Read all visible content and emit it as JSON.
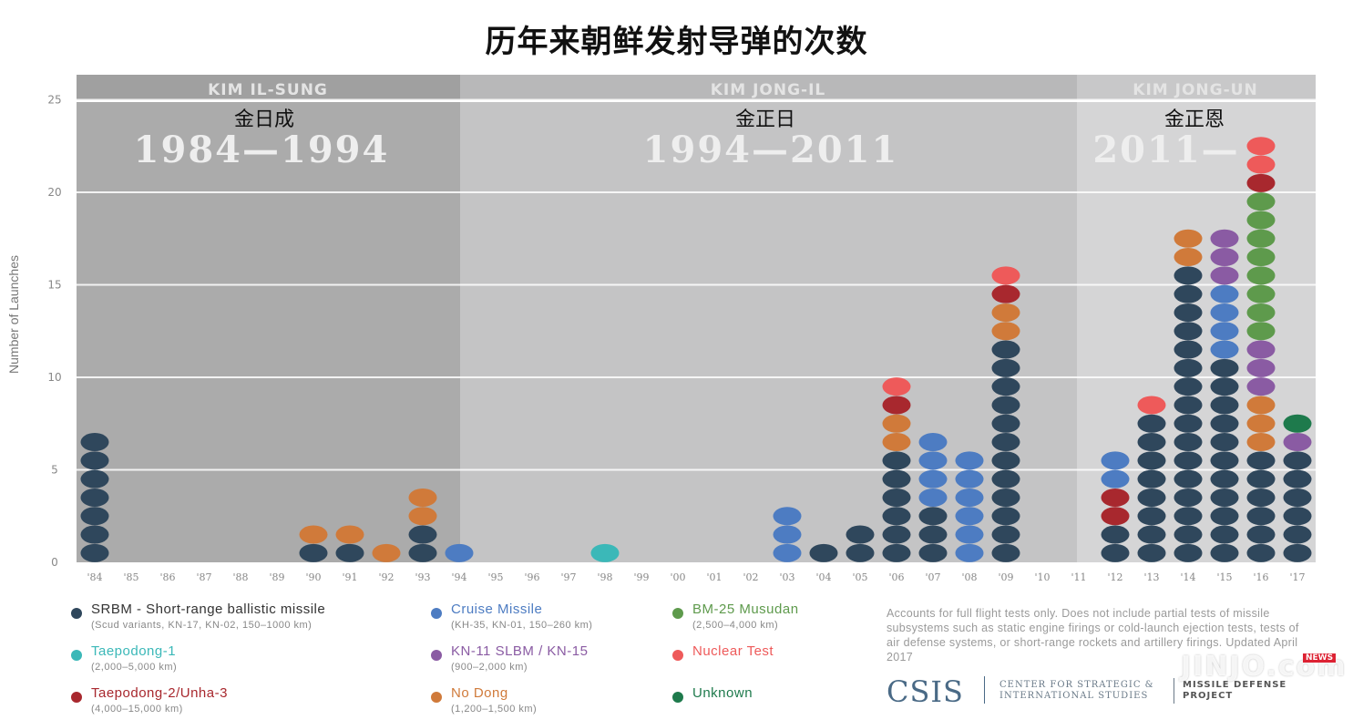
{
  "title": "历年来朝鲜发射导弹的次数",
  "eras": [
    {
      "name": "KIM IL-SUNG",
      "cn": "金日成",
      "years": "1984—1994",
      "color": "#ababab"
    },
    {
      "name": "KIM JONG-IL",
      "cn": "金正日",
      "years": "1994—2011",
      "color": "#c4c4c5"
    },
    {
      "name": "KIM JONG-UN",
      "cn": "金正恩",
      "years": "2011—",
      "color": "#d5d5d6"
    }
  ],
  "legend": [
    {
      "key": "srbm",
      "name": "SRBM - Short-range ballistic missile",
      "sub": "(Scud variants, KN-17, KN-02, 150–1000 km)",
      "color": "#2f475c"
    },
    {
      "key": "taepodong1",
      "name": "Taepodong-1",
      "sub": "(2,000–5,000 km)",
      "color": "#3bb8b8"
    },
    {
      "key": "taepodong2",
      "name": "Taepodong-2/Unha-3",
      "sub": "(4,000–15,000 km)",
      "color": "#a8282e"
    },
    {
      "key": "cruise",
      "name": "Cruise Missile",
      "sub": "(KH-35, KN-01, 150–260 km)",
      "color": "#4d7cc2"
    },
    {
      "key": "kn11",
      "name": "KN-11 SLBM / KN-15",
      "sub": "(900–2,000 km)",
      "color": "#8a5ba3"
    },
    {
      "key": "nodong",
      "name": "No Dong",
      "sub": "(1,200–1,500 km)",
      "color": "#d07a3a"
    },
    {
      "key": "musudan",
      "name": "BM-25 Musudan",
      "sub": "(2,500–4,000 km)",
      "color": "#5e9a4c"
    },
    {
      "key": "nuclear",
      "name": "Nuclear Test",
      "sub": "",
      "color": "#ee5a5a"
    },
    {
      "key": "unknown",
      "name": "Unknown",
      "sub": "",
      "color": "#1e7a4c"
    }
  ],
  "note": "Accounts for full flight tests only. Does not include partial tests of missile subsystems such as static engine firings or cold-launch ejection tests, tests of air defense systems, or short-range rockets and artillery firings. Updated April 2017",
  "branding": {
    "logo": "CSIS",
    "center": "CENTER FOR STRATEGIC &\nINTERNATIONAL STUDIES",
    "project": "MISSILE DEFENSE\nPROJECT",
    "watermark": "JINJO.com",
    "watermark_badge": "NEWS"
  },
  "chart_data": {
    "type": "bar",
    "title": "历年来朝鲜发射导弹的次数",
    "ylabel": "Number of Launches",
    "ylim": [
      0,
      25
    ],
    "yticks": [
      0,
      5,
      10,
      15,
      20,
      25
    ],
    "categories": [
      "'84",
      "'85",
      "'86",
      "'87",
      "'88",
      "'89",
      "'90",
      "'91",
      "'92",
      "'93",
      "'94",
      "'95",
      "'96",
      "'97",
      "'98",
      "'99",
      "'00",
      "'01",
      "'02",
      "'03",
      "'04",
      "'05",
      "'06",
      "'07",
      "'08",
      "'09",
      "'10",
      "'11",
      "'12",
      "'13",
      "'14",
      "'15",
      "'16",
      "'17"
    ],
    "stacks": [
      [
        {
          "type": "srbm",
          "count": 7
        }
      ],
      [],
      [],
      [],
      [],
      [],
      [
        {
          "type": "srbm",
          "count": 1
        },
        {
          "type": "nodong",
          "count": 1
        }
      ],
      [
        {
          "type": "srbm",
          "count": 1
        },
        {
          "type": "nodong",
          "count": 1
        }
      ],
      [
        {
          "type": "nodong",
          "count": 1
        }
      ],
      [
        {
          "type": "srbm",
          "count": 2
        },
        {
          "type": "nodong",
          "count": 2
        }
      ],
      [
        {
          "type": "cruise",
          "count": 1
        }
      ],
      [],
      [],
      [],
      [
        {
          "type": "taepodong1",
          "count": 1
        }
      ],
      [],
      [],
      [],
      [],
      [
        {
          "type": "cruise",
          "count": 3
        }
      ],
      [
        {
          "type": "srbm",
          "count": 1
        }
      ],
      [
        {
          "type": "srbm",
          "count": 2
        }
      ],
      [
        {
          "type": "srbm",
          "count": 6
        },
        {
          "type": "nodong",
          "count": 2
        },
        {
          "type": "taepodong2",
          "count": 1
        },
        {
          "type": "nuclear",
          "count": 1
        }
      ],
      [
        {
          "type": "srbm",
          "count": 3
        },
        {
          "type": "cruise",
          "count": 4
        }
      ],
      [
        {
          "type": "cruise",
          "count": 6
        }
      ],
      [
        {
          "type": "srbm",
          "count": 12
        },
        {
          "type": "nodong",
          "count": 2
        },
        {
          "type": "taepodong2",
          "count": 1
        },
        {
          "type": "nuclear",
          "count": 1
        }
      ],
      [],
      [],
      [
        {
          "type": "srbm",
          "count": 2
        },
        {
          "type": "taepodong2",
          "count": 2
        },
        {
          "type": "cruise",
          "count": 2
        }
      ],
      [
        {
          "type": "srbm",
          "count": 8
        },
        {
          "type": "nuclear",
          "count": 1
        }
      ],
      [
        {
          "type": "srbm",
          "count": 16
        },
        {
          "type": "nodong",
          "count": 2
        }
      ],
      [
        {
          "type": "srbm",
          "count": 11
        },
        {
          "type": "cruise",
          "count": 4
        },
        {
          "type": "kn11",
          "count": 3
        }
      ],
      [
        {
          "type": "srbm",
          "count": 6
        },
        {
          "type": "nodong",
          "count": 3
        },
        {
          "type": "kn11",
          "count": 3
        },
        {
          "type": "musudan",
          "count": 8
        },
        {
          "type": "taepodong2",
          "count": 1
        },
        {
          "type": "nuclear",
          "count": 2
        }
      ],
      [
        {
          "type": "srbm",
          "count": 6
        },
        {
          "type": "kn11",
          "count": 1
        },
        {
          "type": "unknown",
          "count": 1
        }
      ]
    ],
    "totals": [
      7,
      0,
      0,
      0,
      0,
      0,
      2,
      2,
      1,
      4,
      1,
      0,
      0,
      0,
      1,
      0,
      0,
      0,
      0,
      3,
      1,
      2,
      10,
      7,
      6,
      16,
      0,
      0,
      6,
      9,
      18,
      18,
      23,
      8
    ]
  }
}
